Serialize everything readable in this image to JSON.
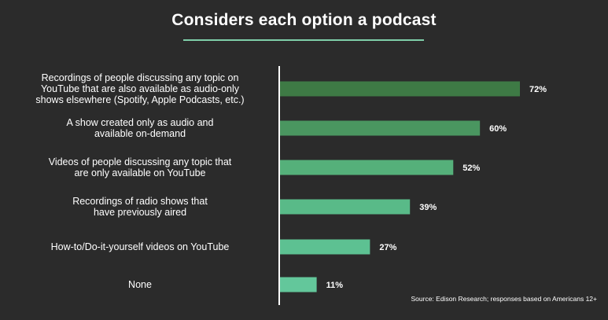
{
  "chart_data": {
    "type": "bar",
    "orientation": "horizontal",
    "title": "Considers each option a podcast",
    "categories": [
      [
        "Recordings of people discussing any topic on",
        "YouTube that are also available as audio-only",
        "shows elsewhere (Spotify, Apple Podcasts, etc.)"
      ],
      [
        "A show created only as audio and",
        "available on-demand"
      ],
      [
        "Videos of people discussing any topic that",
        "are only available on YouTube"
      ],
      [
        "Recordings of radio shows that",
        "have previously aired"
      ],
      [
        "How-to/Do-it-yourself videos on YouTube"
      ],
      [
        "None"
      ]
    ],
    "values": [
      72,
      60,
      52,
      39,
      27,
      11
    ],
    "value_labels": [
      "72%",
      "60%",
      "52%",
      "39%",
      "27%",
      "11%"
    ],
    "unit": "%",
    "xlim": [
      0,
      72
    ],
    "grid": false,
    "colors": [
      "#3e7a45",
      "#4a9660",
      "#55b07a",
      "#59ba88",
      "#5dc192",
      "#63c79b"
    ],
    "axis_color": "#ffffff"
  },
  "source": "Source: Edison Research; responses based on Americans 12+"
}
